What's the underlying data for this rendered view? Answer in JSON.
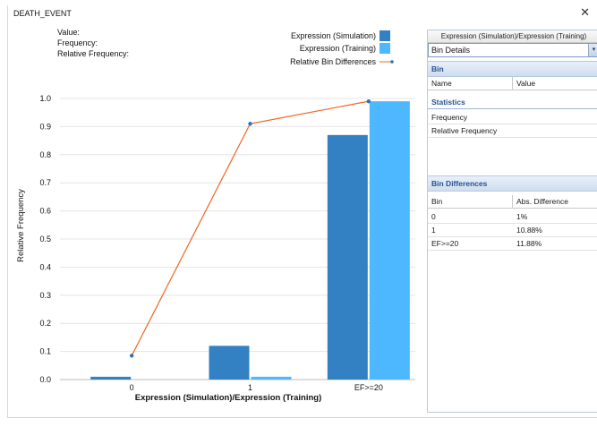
{
  "window": {
    "title": "DEATH_EVENT",
    "close_glyph": "✕"
  },
  "info": {
    "value_label": "Value:",
    "frequency_label": "Frequency:",
    "relative_frequency_label": "Relative Frequency:"
  },
  "colors": {
    "simulation": "#3380c3",
    "training": "#4db8ff",
    "line": "#f26522",
    "marker": "#2f73b5",
    "grid": "#e4e4e4",
    "panel_accent": "#24518f"
  },
  "chart_data": {
    "type": "bar",
    "categories": [
      "0",
      "1",
      "EF>=20"
    ],
    "series": [
      {
        "name": "Expression (Simulation)",
        "values": [
          0.01,
          0.12,
          0.87
        ]
      },
      {
        "name": "Expression (Training)",
        "values": [
          0.0,
          0.01,
          0.99
        ]
      }
    ],
    "line_series": {
      "name": "Relative Bin Differences",
      "values": [
        0.085,
        0.91,
        0.99
      ]
    },
    "xlabel": "Expression (Simulation)/Expression (Training)",
    "ylabel": "Relative Frequency",
    "ylim": [
      0,
      1.0
    ],
    "yticks": [
      "0.0",
      "0.1",
      "0.2",
      "0.3",
      "0.4",
      "0.5",
      "0.6",
      "0.7",
      "0.8",
      "0.9",
      "1.0"
    ],
    "grid": true,
    "legend_position": "top-right"
  },
  "panel": {
    "tab_label": "Expression (Simulation)/Expression (Training)",
    "select_value": "Bin Details",
    "select_arrow": "▾",
    "bin_header": "Bin",
    "bin_columns": [
      "Name",
      "Value"
    ],
    "statistics_header": "Statistics",
    "statistics_rows": [
      "Frequency",
      "Relative Frequency"
    ],
    "bin_diff_header": "Bin Differences",
    "bin_diff_columns": [
      "Bin",
      "Abs. Difference"
    ],
    "bin_diff_rows": [
      {
        "bin": "0",
        "diff": "1%"
      },
      {
        "bin": "1",
        "diff": "10.88%"
      },
      {
        "bin": "EF>=20",
        "diff": "11.88%"
      }
    ]
  }
}
